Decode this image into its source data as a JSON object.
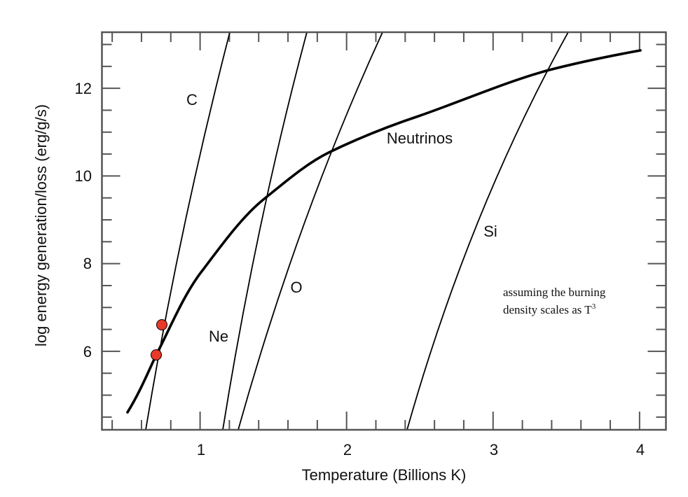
{
  "chart_data": {
    "type": "line",
    "title": "",
    "xlabel": "Temperature (Billions K)",
    "ylabel": "log energy generation/loss (erg/g/s)",
    "xlim": [
      0.33,
      4.18
    ],
    "ylim": [
      4.21,
      13.28
    ],
    "x_ticks": [
      1,
      2,
      3,
      4
    ],
    "y_ticks": [
      6,
      8,
      10,
      12
    ],
    "x_minor_step": 0.2,
    "y_minor_step": 0.5,
    "grid": false,
    "legend": null,
    "series": [
      {
        "name": "Neutrinos",
        "style": "thick",
        "x": [
          0.51,
          0.7,
          1.02,
          1.43,
          1.88,
          2.51,
          3.37,
          4.01
        ],
        "y": [
          4.61,
          5.92,
          7.86,
          9.45,
          10.52,
          11.37,
          12.39,
          12.85
        ]
      },
      {
        "name": "C",
        "style": "thin",
        "x": [
          0.63,
          0.92,
          1.21
        ],
        "y": [
          4.21,
          9.0,
          13.28
        ]
      },
      {
        "name": "Ne",
        "style": "thin",
        "x": [
          1.16,
          1.44,
          1.73
        ],
        "y": [
          4.21,
          9.3,
          13.28
        ]
      },
      {
        "name": "O",
        "style": "thin",
        "x": [
          1.26,
          1.72,
          2.25
        ],
        "y": [
          4.21,
          8.9,
          13.28
        ]
      },
      {
        "name": "Si",
        "style": "thin",
        "x": [
          2.42,
          2.92,
          3.52
        ],
        "y": [
          4.21,
          8.7,
          13.28
        ]
      }
    ],
    "points": [
      {
        "x": 0.74,
        "y": 6.6,
        "color": "#e8392a"
      },
      {
        "x": 0.7,
        "y": 5.92,
        "color": "#e8392a"
      }
    ],
    "annotations": [
      {
        "text": "C",
        "x": 0.93,
        "y": 12.2
      },
      {
        "text": "Ne",
        "x": 1.4,
        "y": 6.35
      },
      {
        "text": "O",
        "x": 1.65,
        "y": 7.55
      },
      {
        "text": "Si",
        "x": 2.93,
        "y": 8.75
      },
      {
        "text": "Neutrinos",
        "x": 2.49,
        "y": 10.85
      },
      {
        "text": "assuming the burning density scales as T³",
        "x": 3.05,
        "y": 7.0
      }
    ]
  },
  "labels": {
    "x_tick_1": "1",
    "x_tick_2": "2",
    "x_tick_3": "3",
    "x_tick_4": "4",
    "y_tick_6": "6",
    "y_tick_8": "8",
    "y_tick_10": "10",
    "y_tick_12": "12",
    "xlabel": "Temperature (Billions K)",
    "ylabel": "log energy generation/loss (erg/g/s)",
    "curve_c": "C",
    "curve_ne": "Ne",
    "curve_o": "O",
    "curve_si": "Si",
    "curve_neutrinos": "Neutrinos",
    "note_line1": "assuming the burning",
    "note_line2_main": "density scales as T",
    "note_line2_sup": "3"
  },
  "colors": {
    "axis": "#555555",
    "curve": "#000000",
    "point_fill": "#e8392a",
    "point_stroke": "#000000"
  }
}
